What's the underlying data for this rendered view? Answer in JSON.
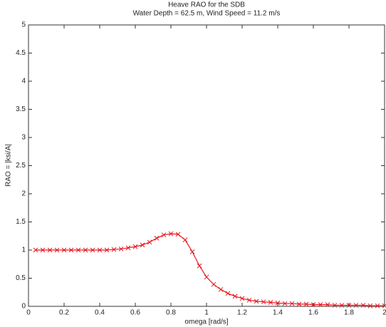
{
  "chart_data": {
    "type": "line",
    "title": "Heave RAO for the SDB",
    "subtitle": "Water Depth = 62.5 m, Wind Speed = 11.2 m/s",
    "x_label": "omega [rad/s]",
    "y_label": "RAO = |ksi/A|",
    "x": [
      0.04,
      0.08,
      0.12,
      0.16,
      0.2,
      0.24,
      0.28,
      0.32,
      0.36,
      0.4,
      0.44,
      0.48,
      0.52,
      0.56,
      0.6,
      0.64,
      0.68,
      0.72,
      0.76,
      0.8,
      0.84,
      0.88,
      0.92,
      0.96,
      1.0,
      1.04,
      1.08,
      1.12,
      1.16,
      1.2,
      1.24,
      1.28,
      1.32,
      1.36,
      1.4,
      1.44,
      1.48,
      1.52,
      1.56,
      1.6,
      1.64,
      1.68,
      1.72,
      1.76,
      1.8,
      1.84,
      1.88,
      1.92,
      1.96,
      2.0
    ],
    "series": [
      {
        "color": "#e8141c",
        "values": [
          1,
          1,
          1,
          1,
          1,
          1,
          1,
          1,
          1,
          1,
          1,
          1.01,
          1.02,
          1.04,
          1.06,
          1.09,
          1.14,
          1.21,
          1.27,
          1.29,
          1.28,
          1.18,
          0.97,
          0.72,
          0.52,
          0.39,
          0.3,
          0.23,
          0.18,
          0.14,
          0.11,
          0.09,
          0.08,
          0.07,
          0.06,
          0.05,
          0.05,
          0.04,
          0.04,
          0.03,
          0.03,
          0.03,
          0.02,
          0.02,
          0.02,
          0.02,
          0.02,
          0.01,
          0.01,
          0.01
        ]
      }
    ],
    "xlim": [
      0,
      2
    ],
    "xticks": [
      0,
      0.2,
      0.4,
      0.6,
      0.8,
      1,
      1.2,
      1.4,
      1.6,
      1.8,
      2
    ],
    "ylim": [
      0,
      5
    ],
    "yticks": [
      0,
      0.5,
      1,
      1.5,
      2,
      2.5,
      3,
      3.5,
      4,
      4.5,
      5
    ],
    "grid": false
  }
}
